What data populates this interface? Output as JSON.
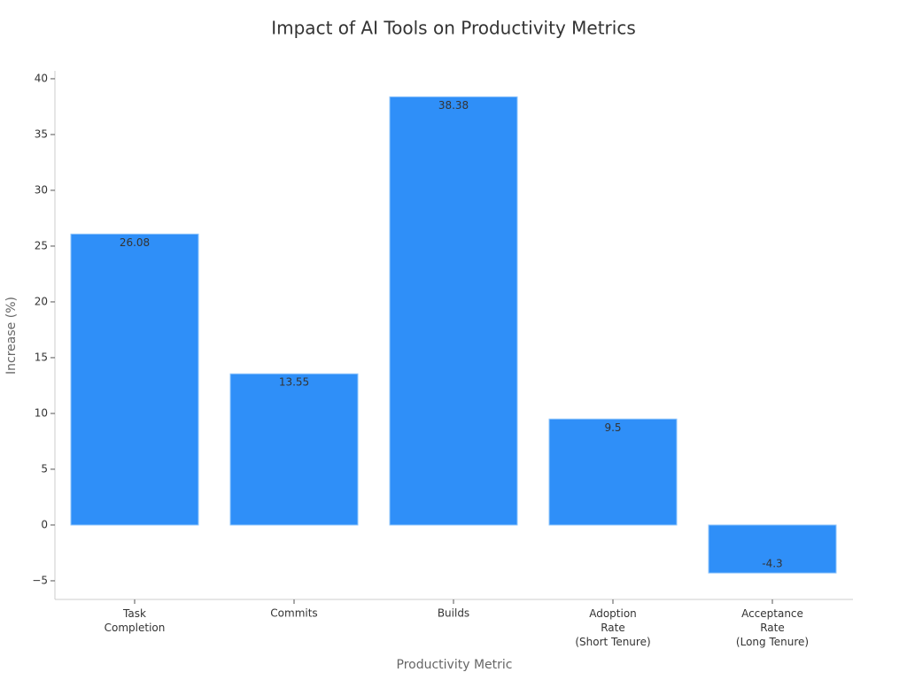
{
  "chart_data": {
    "type": "bar",
    "title": "Impact of AI Tools on Productivity Metrics",
    "x_label": "Productivity Metric",
    "y_label": "Increase (%)",
    "categories": [
      "Task\nCompletion",
      "Commits",
      "Builds",
      "Adoption\nRate\n(Short Tenure)",
      "Acceptance\nRate\n(Long Tenure)"
    ],
    "values": [
      26.08,
      13.55,
      38.38,
      9.5,
      -4.3
    ],
    "color": "#2f8ff8",
    "ylim": [
      -6.67,
      40.71
    ],
    "yticks": [
      {
        "value": -5,
        "label": "−5"
      },
      0,
      5,
      10,
      15,
      20,
      25,
      30,
      35,
      40
    ],
    "grid": false
  }
}
